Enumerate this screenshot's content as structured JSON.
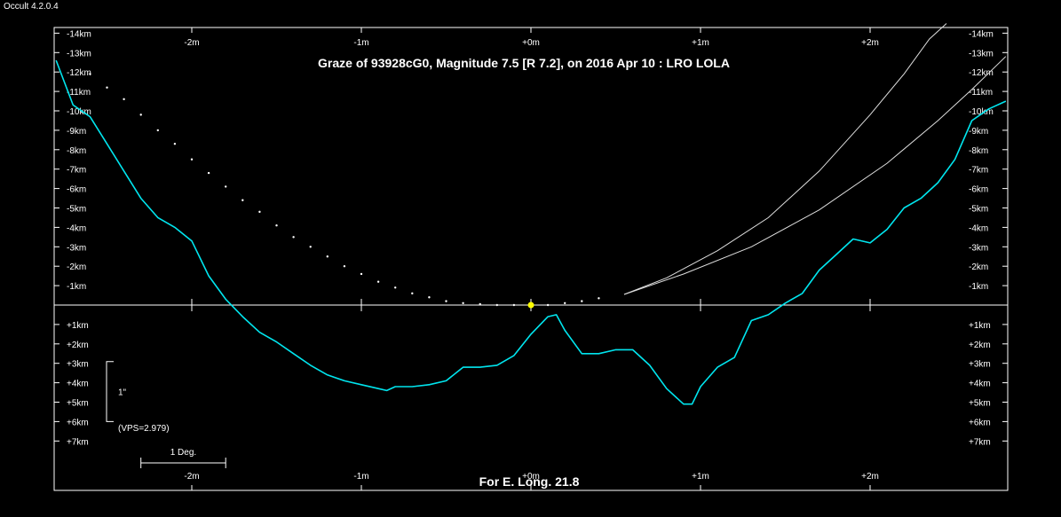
{
  "app": {
    "label": "Occult 4.2.0.4"
  },
  "chart_data": {
    "type": "line",
    "title": "Graze of  93928cG0,  Magnitude 7.5 [R 7.2],  on 2016 Apr 10  :  LRO LOLA",
    "footer": "For E. Long. 21.8",
    "xlim": [
      -2.8,
      2.8
    ],
    "ylim": [
      -14.5,
      9.2
    ],
    "x_ticks": [
      {
        "value": -2,
        "label": "-2m"
      },
      {
        "value": -1,
        "label": "-1m"
      },
      {
        "value": 0,
        "label": "+0m"
      },
      {
        "value": 1,
        "label": "+1m"
      },
      {
        "value": 2,
        "label": "+2m"
      }
    ],
    "x_ticks_bottom": [
      {
        "value": -2,
        "label": "-2m"
      },
      {
        "value": -1,
        "label": "-1m"
      },
      {
        "value": 0,
        "label": "+0m"
      },
      {
        "value": 1,
        "label": "+1m"
      },
      {
        "value": 2,
        "label": "+2m"
      }
    ],
    "y_ticks": [
      {
        "value": -14,
        "label": "-14km"
      },
      {
        "value": -13,
        "label": "-13km"
      },
      {
        "value": -12,
        "label": "-12km"
      },
      {
        "value": -11,
        "label": "-11km"
      },
      {
        "value": -10,
        "label": "-10km"
      },
      {
        "value": -9,
        "label": "-9km"
      },
      {
        "value": -8,
        "label": "-8km"
      },
      {
        "value": -7,
        "label": "-7km"
      },
      {
        "value": -6,
        "label": "-6km"
      },
      {
        "value": -5,
        "label": "-5km"
      },
      {
        "value": -4,
        "label": "-4km"
      },
      {
        "value": -3,
        "label": "-3km"
      },
      {
        "value": -2,
        "label": "-2km"
      },
      {
        "value": -1,
        "label": "-1km"
      },
      {
        "value": 1,
        "label": "+1km"
      },
      {
        "value": 2,
        "label": "+2km"
      },
      {
        "value": 3,
        "label": "+3km"
      },
      {
        "value": 4,
        "label": "+4km"
      },
      {
        "value": 5,
        "label": "+5km"
      },
      {
        "value": 6,
        "label": "+6km"
      },
      {
        "value": 7,
        "label": "+7km"
      }
    ],
    "scale_bar": {
      "label": "1\"",
      "vps": "(VPS=2.979)",
      "min_km": 3,
      "max_km": 6
    },
    "deg_bar": {
      "label": "1 Deg.",
      "x_from": -2.3,
      "x_to": -1.8
    },
    "colors": {
      "profile": "#00e5ee",
      "smooth": "#7fdcdc",
      "path": "#ffffff",
      "star": "#ffff00",
      "axis": "#ffffff"
    },
    "star": {
      "x": 0.0,
      "y": 0.0
    },
    "series": [
      {
        "kind": "limb-profile",
        "x": [
          -2.8,
          -2.7,
          -2.6,
          -2.5,
          -2.4,
          -2.3,
          -2.2,
          -2.1,
          -2.0,
          -1.9,
          -1.8,
          -1.7,
          -1.6,
          -1.5,
          -1.4,
          -1.3,
          -1.2,
          -1.1,
          -1.0,
          -0.9,
          -0.85,
          -0.8,
          -0.7,
          -0.6,
          -0.5,
          -0.4,
          -0.3,
          -0.2,
          -0.1,
          0.0,
          0.1,
          0.15,
          0.2,
          0.3,
          0.4,
          0.5,
          0.6,
          0.7,
          0.8,
          0.9,
          0.95,
          1.0,
          1.1,
          1.2,
          1.3,
          1.4,
          1.5,
          1.6,
          1.7,
          1.8,
          1.9,
          2.0,
          2.1,
          2.2,
          2.3,
          2.4,
          2.5,
          2.6,
          2.7,
          2.8
        ],
        "y": [
          -12.6,
          -10.3,
          -9.7,
          -8.3,
          -6.9,
          -5.5,
          -4.5,
          -4.0,
          -3.3,
          -1.5,
          -0.3,
          0.6,
          1.4,
          1.9,
          2.5,
          3.1,
          3.6,
          3.9,
          4.1,
          4.3,
          4.4,
          4.2,
          4.2,
          4.1,
          3.9,
          3.2,
          3.2,
          3.1,
          2.6,
          1.5,
          0.6,
          0.5,
          1.3,
          2.5,
          2.5,
          2.3,
          2.3,
          3.1,
          4.3,
          5.1,
          5.1,
          4.2,
          3.2,
          2.7,
          0.8,
          0.5,
          -0.1,
          -0.6,
          -1.8,
          -2.6,
          -3.4,
          -3.2,
          -3.9,
          -5.0,
          -5.5,
          -6.3,
          -7.5,
          -9.5,
          -10.1,
          -10.5
        ]
      },
      {
        "kind": "predicted-path-dots",
        "x": [
          -2.6,
          -2.5,
          -2.4,
          -2.3,
          -2.2,
          -2.1,
          -2.0,
          -1.9,
          -1.8,
          -1.7,
          -1.6,
          -1.5,
          -1.4,
          -1.3,
          -1.2,
          -1.1,
          -1.0,
          -0.9,
          -0.8,
          -0.7,
          -0.6,
          -0.5,
          -0.4,
          -0.3,
          -0.2,
          -0.1,
          0.0,
          0.1,
          0.2,
          0.3,
          0.4
        ],
        "y": [
          -11.9,
          -11.2,
          -10.6,
          -9.8,
          -9.0,
          -8.3,
          -7.5,
          -6.8,
          -6.1,
          -5.4,
          -4.8,
          -4.1,
          -3.5,
          -3.0,
          -2.5,
          -2.0,
          -1.6,
          -1.2,
          -0.9,
          -0.6,
          -0.4,
          -0.2,
          -0.1,
          -0.05,
          0,
          0,
          0,
          0,
          -0.1,
          -0.2,
          -0.35
        ]
      },
      {
        "kind": "path-upper",
        "x": [
          0.55,
          0.8,
          1.1,
          1.4,
          1.7,
          2.0,
          2.2,
          2.35,
          2.45
        ],
        "y": [
          -0.55,
          -1.4,
          -2.8,
          -4.5,
          -6.9,
          -9.8,
          -11.9,
          -13.7,
          -14.5
        ]
      },
      {
        "kind": "path-lower",
        "x": [
          0.55,
          0.9,
          1.3,
          1.7,
          2.1,
          2.4,
          2.6,
          2.8
        ],
        "y": [
          -0.55,
          -1.6,
          -3.0,
          -4.9,
          -7.3,
          -9.5,
          -11.1,
          -12.8
        ]
      }
    ]
  }
}
